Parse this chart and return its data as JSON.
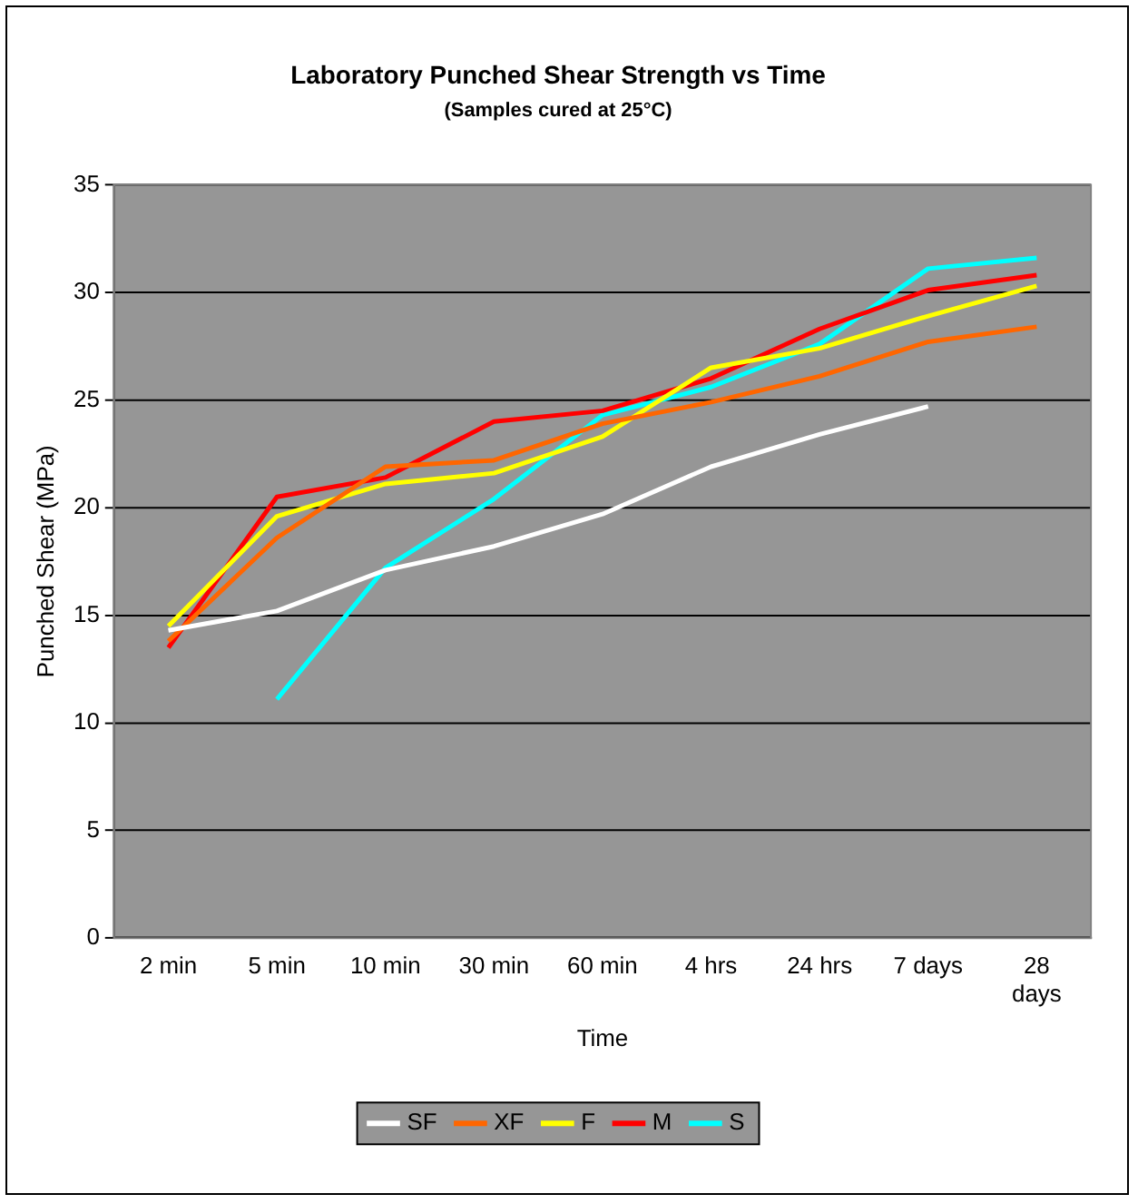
{
  "chart_data": {
    "type": "line",
    "title": "Laboratory Punched Shear Strength vs Time",
    "subtitle": "(Samples cured at 25°C)",
    "xlabel": "Time",
    "ylabel": "Punched Shear (MPa)",
    "categories": [
      "2 min",
      "5 min",
      "10 min",
      "30 min",
      "60 min",
      "4 hrs",
      "24 hrs",
      "7 days",
      "28 days"
    ],
    "series": [
      {
        "name": "SF",
        "color": "#ffffff",
        "values": [
          14.3,
          15.2,
          17.1,
          18.2,
          19.7,
          21.9,
          23.4,
          24.7,
          null
        ]
      },
      {
        "name": "XF",
        "color": "#ff6600",
        "values": [
          13.8,
          18.6,
          21.9,
          22.2,
          23.9,
          24.9,
          26.1,
          27.7,
          28.4
        ]
      },
      {
        "name": "F",
        "color": "#ffff00",
        "values": [
          14.5,
          19.6,
          21.1,
          21.6,
          23.3,
          26.5,
          27.4,
          28.9,
          30.3
        ]
      },
      {
        "name": "M",
        "color": "#ff0000",
        "values": [
          13.5,
          20.5,
          21.4,
          24.0,
          24.5,
          26.0,
          28.3,
          30.1,
          30.8
        ]
      },
      {
        "name": "S",
        "color": "#00ffff",
        "values": [
          null,
          11.1,
          17.2,
          20.4,
          24.3,
          25.6,
          27.6,
          31.1,
          31.6
        ]
      }
    ],
    "ylim": [
      0,
      35
    ],
    "yticks": [
      0,
      5,
      10,
      15,
      20,
      25,
      30,
      35
    ],
    "grid": "y",
    "legend": "bottom",
    "marker": "none",
    "line_style": "solid"
  }
}
